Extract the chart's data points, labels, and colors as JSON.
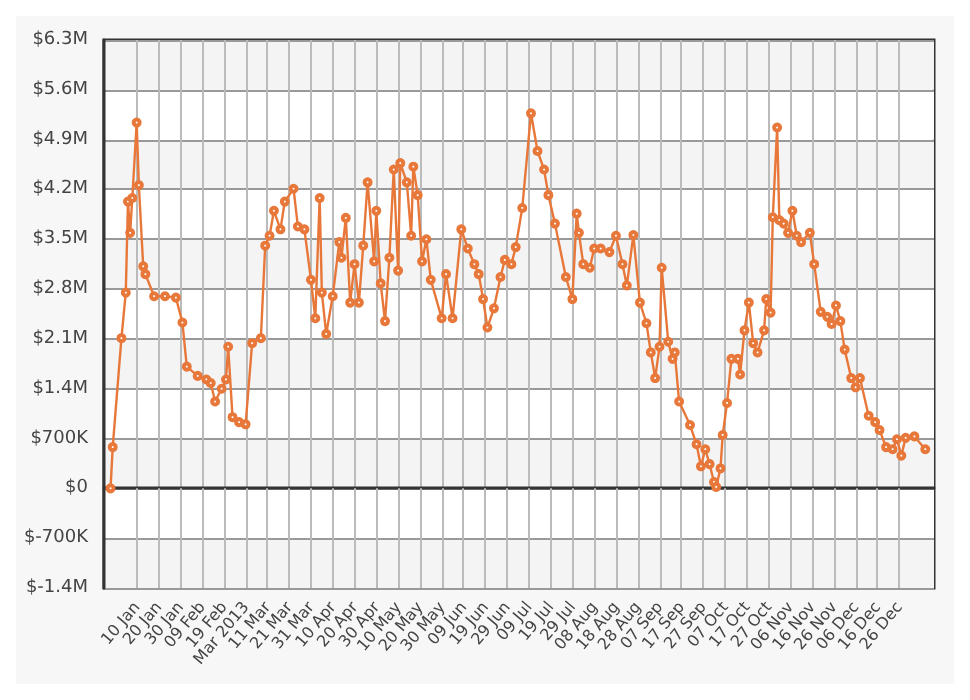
{
  "chart_data": {
    "type": "line",
    "grid": true,
    "marker": "circle",
    "xlim": [
      "2012-12-26",
      "2014-01-11"
    ],
    "xticks": [
      {
        "value": "2013-01-10",
        "label": "10 Jan"
      },
      {
        "value": "2013-01-20",
        "label": "20 Jan"
      },
      {
        "value": "2013-01-30",
        "label": "30 Jan"
      },
      {
        "value": "2013-02-09",
        "label": "09 Feb"
      },
      {
        "value": "2013-02-19",
        "label": "19 Feb"
      },
      {
        "value": "2013-03-01",
        "label": "Mar 2013"
      },
      {
        "value": "2013-03-11",
        "label": "11 Mar"
      },
      {
        "value": "2013-03-21",
        "label": "21 Mar"
      },
      {
        "value": "2013-03-31",
        "label": "31 Mar"
      },
      {
        "value": "2013-04-10",
        "label": "10 Apr"
      },
      {
        "value": "2013-04-20",
        "label": "20 Apr"
      },
      {
        "value": "2013-04-30",
        "label": "30 Apr"
      },
      {
        "value": "2013-05-10",
        "label": "10 May"
      },
      {
        "value": "2013-05-20",
        "label": "20 May"
      },
      {
        "value": "2013-05-30",
        "label": "30 May"
      },
      {
        "value": "2013-06-09",
        "label": "09 Jun"
      },
      {
        "value": "2013-06-19",
        "label": "19 Jun"
      },
      {
        "value": "2013-06-29",
        "label": "29 Jun"
      },
      {
        "value": "2013-07-09",
        "label": "09 Jul"
      },
      {
        "value": "2013-07-19",
        "label": "19 Jul"
      },
      {
        "value": "2013-07-29",
        "label": "29 Jul"
      },
      {
        "value": "2013-08-08",
        "label": "08 Aug"
      },
      {
        "value": "2013-08-18",
        "label": "18 Aug"
      },
      {
        "value": "2013-08-28",
        "label": "28 Aug"
      },
      {
        "value": "2013-09-07",
        "label": "07 Sep"
      },
      {
        "value": "2013-09-17",
        "label": "17 Sep"
      },
      {
        "value": "2013-09-27",
        "label": "27 Sep"
      },
      {
        "value": "2013-10-07",
        "label": "07 Oct"
      },
      {
        "value": "2013-10-17",
        "label": "17 Oct"
      },
      {
        "value": "2013-10-27",
        "label": "27 Oct"
      },
      {
        "value": "2013-11-06",
        "label": "06 Nov"
      },
      {
        "value": "2013-11-16",
        "label": "16 Nov"
      },
      {
        "value": "2013-11-26",
        "label": "26 Nov"
      },
      {
        "value": "2013-12-06",
        "label": "06 Dec"
      },
      {
        "value": "2013-12-16",
        "label": "16 Dec"
      },
      {
        "value": "2013-12-26",
        "label": "26 Dec"
      }
    ],
    "ylim": [
      -1400000,
      6300000
    ],
    "yticks": [
      {
        "value": -1400000,
        "label": "$-1.4M"
      },
      {
        "value": -700000,
        "label": "$-700K"
      },
      {
        "value": 0,
        "label": "$0"
      },
      {
        "value": 700000,
        "label": "$700K"
      },
      {
        "value": 1400000,
        "label": "$1.4M"
      },
      {
        "value": 2100000,
        "label": "$2.1M"
      },
      {
        "value": 2800000,
        "label": "$2.8M"
      },
      {
        "value": 3500000,
        "label": "$3.5M"
      },
      {
        "value": 4200000,
        "label": "$4.2M"
      },
      {
        "value": 4900000,
        "label": "$4.9M"
      },
      {
        "value": 5600000,
        "label": "$5.6M"
      },
      {
        "value": 6300000,
        "label": "$6.3M"
      }
    ],
    "x": [
      "2012-12-29",
      "2012-12-30",
      "2013-01-03",
      "2013-01-05",
      "2013-01-06",
      "2013-01-07",
      "2013-01-08",
      "2013-01-10",
      "2013-01-11",
      "2013-01-13",
      "2013-01-14",
      "2013-01-18",
      "2013-01-23",
      "2013-01-28",
      "2013-01-31",
      "2013-02-02",
      "2013-02-07",
      "2013-02-11",
      "2013-02-13",
      "2013-02-15",
      "2013-02-18",
      "2013-02-20",
      "2013-02-21",
      "2013-02-23",
      "2013-02-26",
      "2013-03-01",
      "2013-03-04",
      "2013-03-08",
      "2013-03-10",
      "2013-03-12",
      "2013-03-14",
      "2013-03-17",
      "2013-03-19",
      "2013-03-23",
      "2013-03-25",
      "2013-03-28",
      "2013-03-31",
      "2013-04-02",
      "2013-04-04",
      "2013-04-05",
      "2013-04-07",
      "2013-04-10",
      "2013-04-13",
      "2013-04-14",
      "2013-04-16",
      "2013-04-18",
      "2013-04-20",
      "2013-04-22",
      "2013-04-24",
      "2013-04-26",
      "2013-04-29",
      "2013-04-30",
      "2013-05-02",
      "2013-05-04",
      "2013-05-06",
      "2013-05-08",
      "2013-05-10",
      "2013-05-11",
      "2013-05-14",
      "2013-05-16",
      "2013-05-17",
      "2013-05-19",
      "2013-05-21",
      "2013-05-23",
      "2013-05-25",
      "2013-05-30",
      "2013-06-01",
      "2013-06-04",
      "2013-06-08",
      "2013-06-11",
      "2013-06-14",
      "2013-06-16",
      "2013-06-18",
      "2013-06-20",
      "2013-06-23",
      "2013-06-26",
      "2013-06-28",
      "2013-07-01",
      "2013-07-03",
      "2013-07-06",
      "2013-07-10",
      "2013-07-13",
      "2013-07-16",
      "2013-07-18",
      "2013-07-21",
      "2013-07-26",
      "2013-07-29",
      "2013-07-31",
      "2013-08-01",
      "2013-08-03",
      "2013-08-06",
      "2013-08-08",
      "2013-08-11",
      "2013-08-15",
      "2013-08-18",
      "2013-08-21",
      "2013-08-23",
      "2013-08-26",
      "2013-08-29",
      "2013-09-01",
      "2013-09-03",
      "2013-09-05",
      "2013-09-07",
      "2013-09-08",
      "2013-09-11",
      "2013-09-13",
      "2013-09-14",
      "2013-09-16",
      "2013-09-21",
      "2013-09-24",
      "2013-09-26",
      "2013-09-28",
      "2013-09-30",
      "2013-10-02",
      "2013-10-03",
      "2013-10-05",
      "2013-10-06",
      "2013-10-08",
      "2013-10-10",
      "2013-10-13",
      "2013-10-14",
      "2013-10-16",
      "2013-10-18",
      "2013-10-20",
      "2013-10-22",
      "2013-10-25",
      "2013-10-26",
      "2013-10-28",
      "2013-10-29",
      "2013-10-31",
      "2013-11-01",
      "2013-11-03",
      "2013-11-05",
      "2013-11-07",
      "2013-11-09",
      "2013-11-11",
      "2013-11-15",
      "2013-11-17",
      "2013-11-20",
      "2013-11-23",
      "2013-11-25",
      "2013-11-27",
      "2013-11-29",
      "2013-12-01",
      "2013-12-04",
      "2013-12-06",
      "2013-12-08",
      "2013-12-12",
      "2013-12-15",
      "2013-12-17",
      "2013-12-20",
      "2013-12-23",
      "2013-12-25",
      "2013-12-27",
      "2013-12-29",
      "2014-01-02",
      "2014-01-07"
    ],
    "series": [
      {
        "color": "#e8773a",
        "values": [
          0,
          580000,
          2110000,
          2750000,
          4030000,
          3590000,
          4080000,
          5140000,
          4260000,
          3120000,
          3010000,
          2700000,
          2700000,
          2680000,
          2330000,
          1710000,
          1580000,
          1530000,
          1480000,
          1220000,
          1400000,
          1530000,
          1990000,
          1000000,
          930000,
          900000,
          2040000,
          2110000,
          3410000,
          3550000,
          3900000,
          3640000,
          4030000,
          4210000,
          3680000,
          3640000,
          2930000,
          2390000,
          4080000,
          2750000,
          2170000,
          2700000,
          3460000,
          3240000,
          3800000,
          2610000,
          3150000,
          2610000,
          3410000,
          4300000,
          3190000,
          3900000,
          2880000,
          2350000,
          3240000,
          4480000,
          3060000,
          4570000,
          4300000,
          3550000,
          4520000,
          4120000,
          3190000,
          3500000,
          2930000,
          2390000,
          3010000,
          2390000,
          3640000,
          3370000,
          3150000,
          3010000,
          2660000,
          2260000,
          2530000,
          2970000,
          3210000,
          3150000,
          3390000,
          3940000,
          5270000,
          4740000,
          4480000,
          4120000,
          3720000,
          2970000,
          2660000,
          3860000,
          3590000,
          3150000,
          3100000,
          3370000,
          3370000,
          3320000,
          3550000,
          3150000,
          2850000,
          3560000,
          2610000,
          2320000,
          1910000,
          1550000,
          1990000,
          3100000,
          2060000,
          1820000,
          1910000,
          1220000,
          890000,
          620000,
          310000,
          550000,
          340000,
          90000,
          20000,
          280000,
          750000,
          1200000,
          1820000,
          1820000,
          1600000,
          2220000,
          2610000,
          2040000,
          1910000,
          2220000,
          2660000,
          2470000,
          3810000,
          5070000,
          3770000,
          3720000,
          3590000,
          3900000,
          3550000,
          3460000,
          3590000,
          3150000,
          2480000,
          2410000,
          2310000,
          2570000,
          2350000,
          1950000,
          1550000,
          1420000,
          1550000,
          1020000,
          930000,
          820000,
          580000,
          550000,
          690000,
          460000,
          710000,
          730000,
          550000
        ]
      }
    ]
  }
}
